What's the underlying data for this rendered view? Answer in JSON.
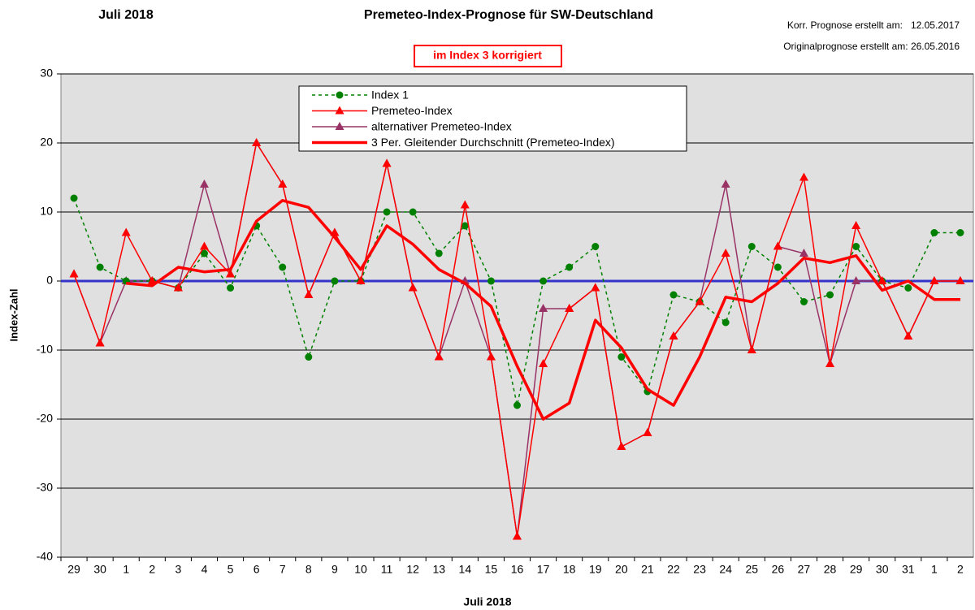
{
  "chart_data": {
    "type": "line",
    "title": "Premeteo-Index-Prognose für SW-Deutschland",
    "top_left_label": "Juli 2018",
    "notes": [
      "Korr. Prognose erstellt am:   12.05.2017",
      "Originalprognose erstellt am: 26.05.2016"
    ],
    "annotation": "im Index 3 korrigiert",
    "ylabel": "Index-Zahl",
    "xlabel": "Juli 2018",
    "categories": [
      "29",
      "30",
      "1",
      "2",
      "3",
      "4",
      "5",
      "6",
      "7",
      "8",
      "9",
      "10",
      "11",
      "12",
      "13",
      "14",
      "15",
      "16",
      "17",
      "18",
      "19",
      "20",
      "21",
      "22",
      "23",
      "24",
      "25",
      "26",
      "27",
      "28",
      "29",
      "30",
      "31",
      "1",
      "2"
    ],
    "ylim": [
      -40,
      30
    ],
    "yticks": [
      -40,
      -30,
      -20,
      -10,
      0,
      10,
      20,
      30
    ],
    "grid": true,
    "reference_line": {
      "value": 0,
      "color": "#3333cc"
    },
    "series": [
      {
        "name": "alternativer Premeteo-Index",
        "color": "#993366",
        "style": "line",
        "marker": "triangle",
        "values": [
          1,
          -9,
          0,
          0,
          -1,
          14,
          1,
          20,
          14,
          -2,
          7,
          0,
          17,
          -1,
          -11,
          0,
          -11,
          -37,
          -4,
          -4,
          -1,
          -24,
          -22,
          -8,
          -3,
          14,
          -10,
          5,
          4,
          -12,
          0,
          0,
          -8,
          0,
          0
        ]
      },
      {
        "name": "Index 1",
        "color": "#008000",
        "style": "dotted",
        "marker": "circle",
        "values": [
          12,
          2,
          0,
          0,
          -1,
          4,
          -1,
          8,
          2,
          -11,
          0,
          0,
          10,
          10,
          4,
          8,
          0,
          -18,
          0,
          2,
          5,
          -11,
          -16,
          -2,
          -3,
          -6,
          5,
          2,
          -3,
          -2,
          5,
          0,
          -1,
          7,
          7
        ]
      },
      {
        "name": "Premeteo-Index",
        "color": "#ff0000",
        "style": "line",
        "marker": "triangle",
        "values": [
          1,
          -9,
          7,
          0,
          -1,
          5,
          1,
          20,
          14,
          -2,
          7,
          0,
          17,
          -1,
          -11,
          11,
          -11,
          -37,
          -12,
          -4,
          -1,
          -24,
          -22,
          -8,
          -3,
          4,
          -10,
          5,
          15,
          -12,
          8,
          0,
          -8,
          0,
          0
        ]
      },
      {
        "name": "3 Per. Gleitender Durchschnitt (Premeteo-Index)",
        "color": "#ff0000",
        "style": "thick",
        "marker": "none",
        "values": [
          null,
          null,
          -0.33,
          -0.67,
          2,
          1.33,
          1.67,
          8.67,
          11.67,
          10.67,
          6.33,
          1.67,
          8,
          5.33,
          1.67,
          -0.33,
          -3.67,
          -12.33,
          -20,
          -17.67,
          -5.67,
          -9.67,
          -15.67,
          -18,
          -11,
          -2.33,
          -3,
          -0.33,
          3.33,
          2.67,
          3.67,
          -1.33,
          0,
          -2.67,
          -2.67
        ]
      }
    ],
    "legend_order": [
      1,
      2,
      0,
      3
    ]
  }
}
